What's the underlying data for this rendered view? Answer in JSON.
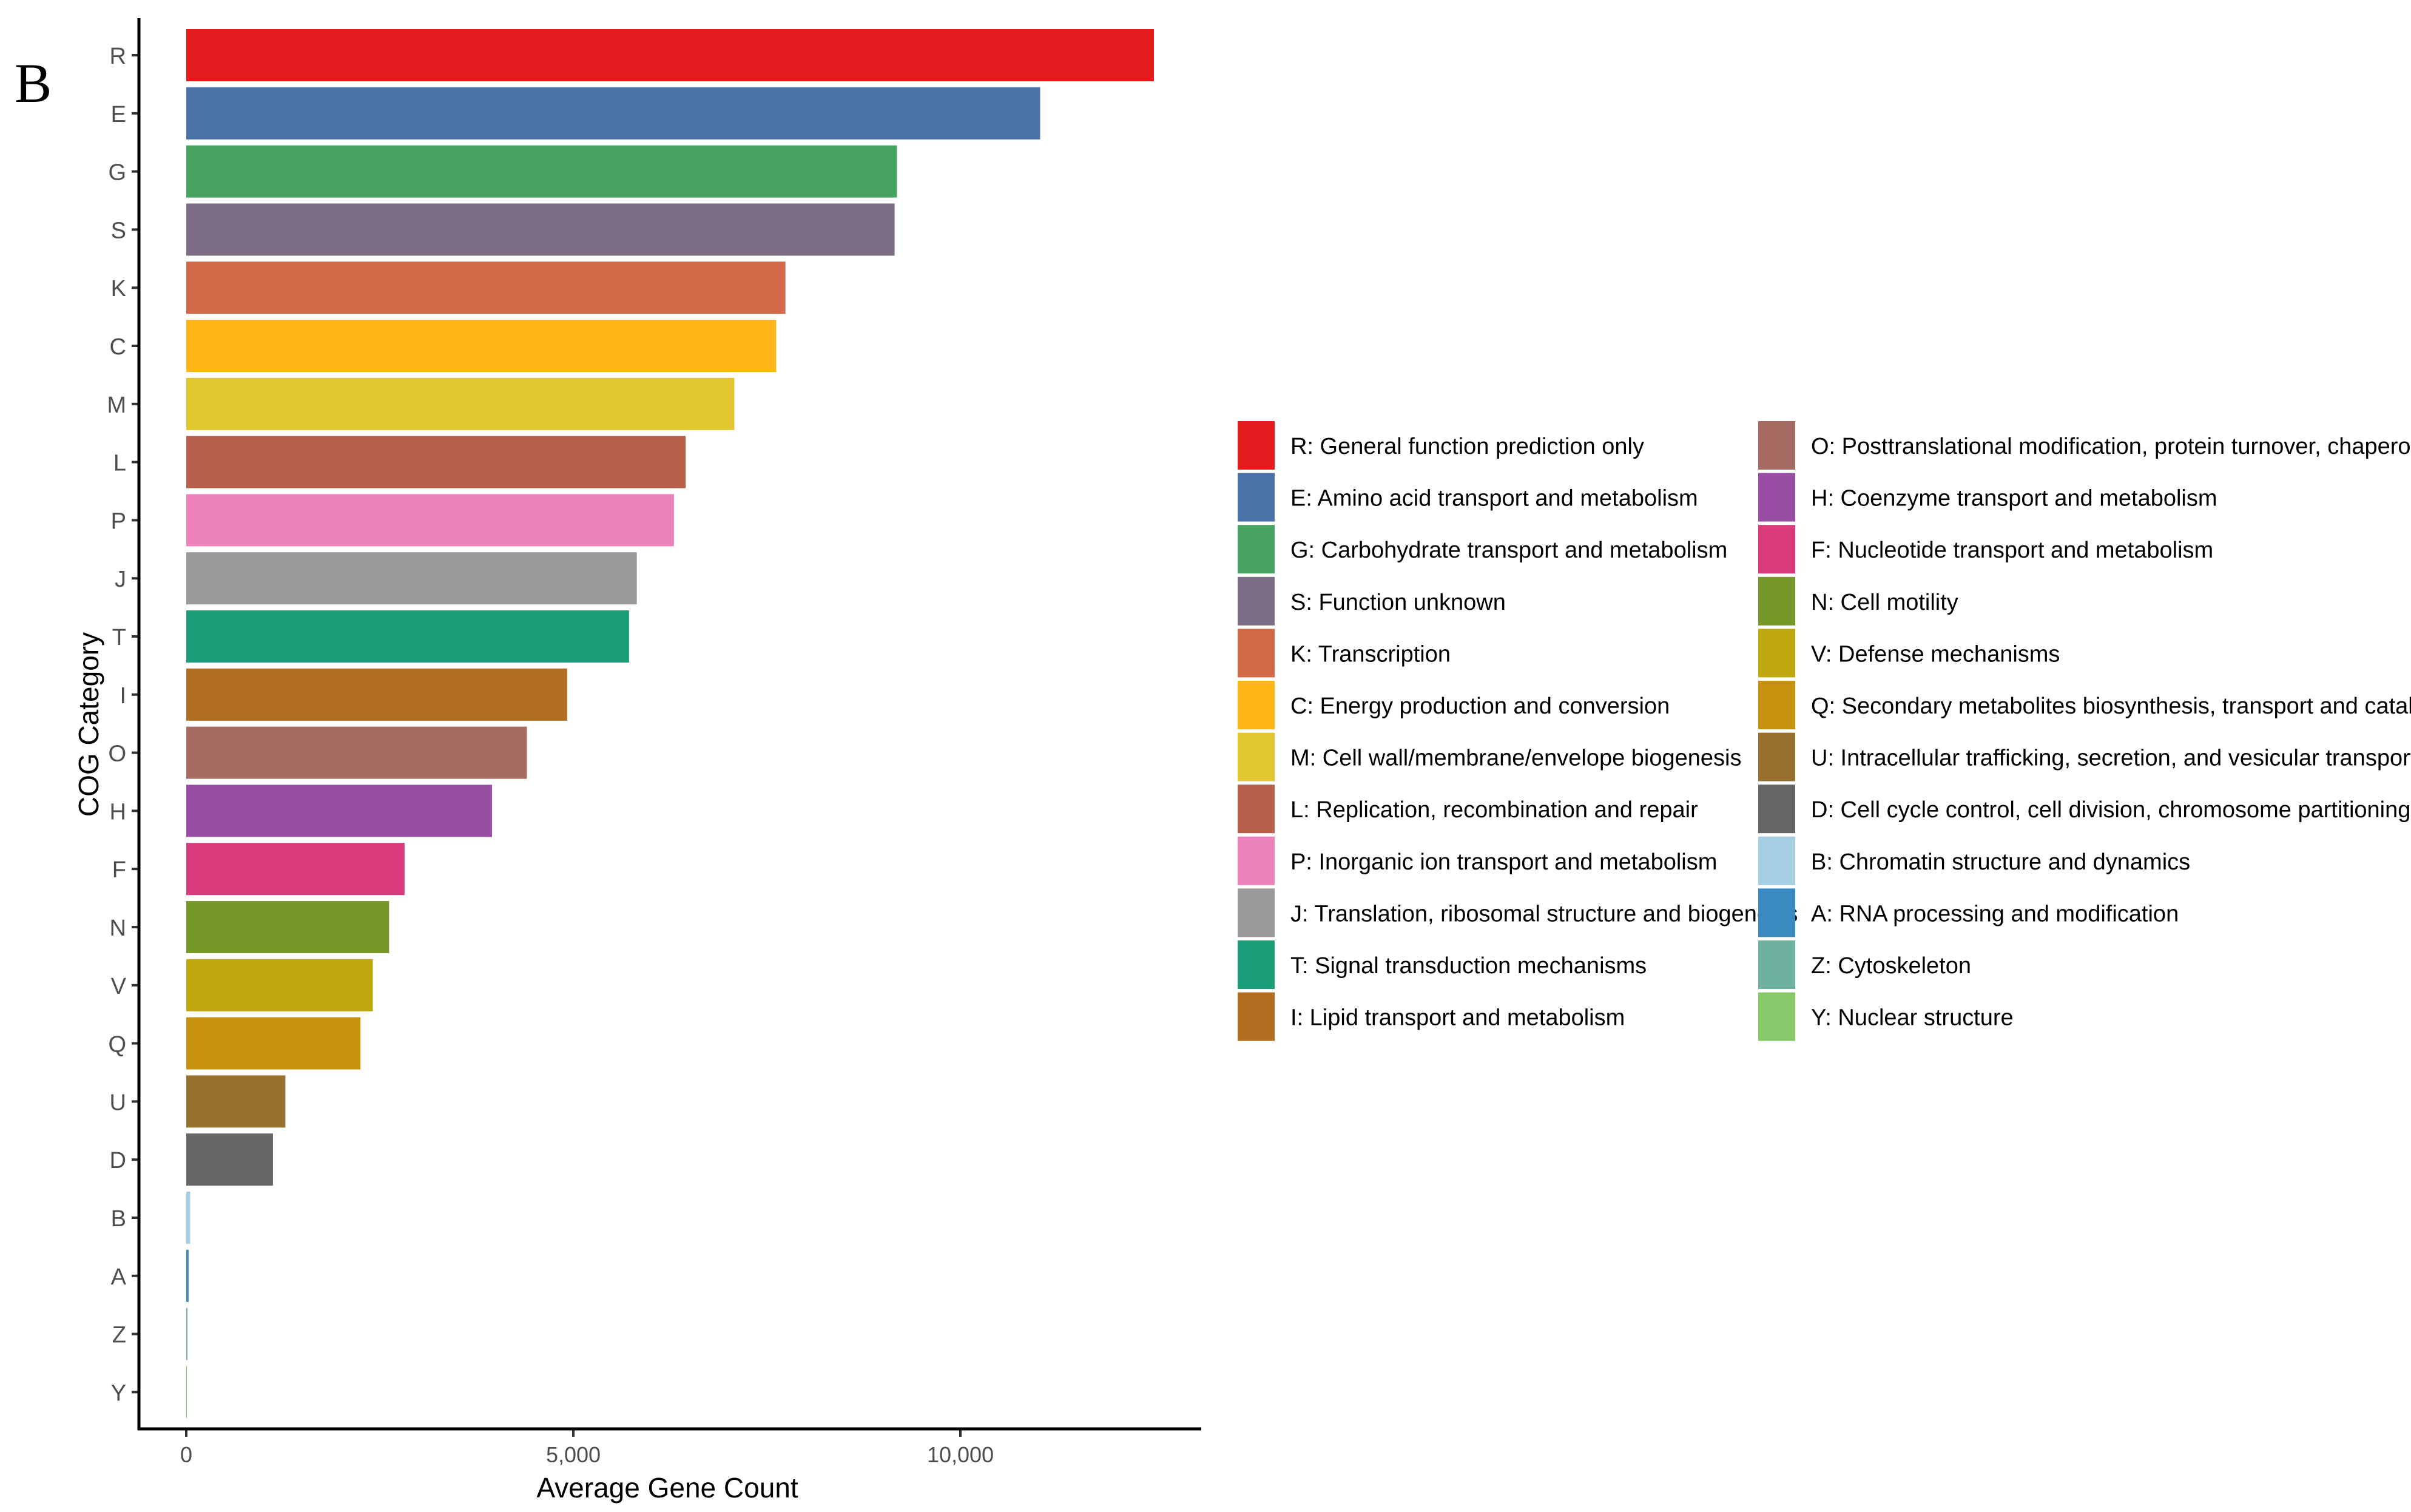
{
  "panel_label": "B",
  "chart_data": {
    "type": "bar",
    "orientation": "horizontal",
    "xlabel": "Average Gene Count",
    "ylabel": "COG Category",
    "xlim": [
      0,
      13000
    ],
    "xticks": [
      0,
      5000,
      10000
    ],
    "xtick_labels": [
      "0",
      "5,000",
      "10,000"
    ],
    "grid": false,
    "legend_position": "right",
    "categories": [
      "R",
      "E",
      "G",
      "S",
      "K",
      "C",
      "M",
      "L",
      "P",
      "J",
      "T",
      "I",
      "O",
      "H",
      "F",
      "N",
      "V",
      "Q",
      "U",
      "D",
      "B",
      "A",
      "Z",
      "Y"
    ],
    "values": [
      12500,
      11030,
      9180,
      9150,
      7740,
      7620,
      7080,
      6450,
      6300,
      5820,
      5720,
      4920,
      4400,
      3950,
      2820,
      2620,
      2410,
      2250,
      1280,
      1120,
      50,
      30,
      15,
      5
    ],
    "colors": [
      "#E41A1C",
      "#4A72A6",
      "#48A462",
      "#7E6E85",
      "#D16948",
      "#FEB516",
      "#E1C62F",
      "#B75F49",
      "#EC83BA",
      "#999999",
      "#1B9E77",
      "#B16C1F",
      "#A56B63",
      "#984EA3",
      "#D83A7C",
      "#76982A",
      "#BFA80F",
      "#C7920F",
      "#98712F",
      "#666666",
      "#A6CEE3",
      "#3A89C0",
      "#6DB19E",
      "#86C86A"
    ],
    "legend": [
      "R: General function prediction only",
      "E: Amino acid transport and metabolism",
      "G: Carbohydrate transport and metabolism",
      "S: Function unknown",
      "K: Transcription",
      "C: Energy production and conversion",
      "M: Cell wall/membrane/envelope biogenesis",
      "L: Replication, recombination and repair",
      "P: Inorganic ion transport and metabolism",
      "J: Translation, ribosomal structure and biogenesis",
      "T: Signal transduction mechanisms",
      "I: Lipid transport and metabolism",
      "O: Posttranslational modification, protein turnover, chaperones",
      "H: Coenzyme transport and metabolism",
      "F: Nucleotide transport and metabolism",
      "N: Cell motility",
      "V: Defense mechanisms",
      "Q: Secondary metabolites biosynthesis, transport and catabolism",
      "U: Intracellular trafficking, secretion, and vesicular transport",
      "D: Cell cycle control, cell division, chromosome partitioning",
      "B: Chromatin structure and dynamics",
      "A: RNA processing and modification",
      "Z: Cytoskeleton",
      "Y: Nuclear structure"
    ]
  }
}
